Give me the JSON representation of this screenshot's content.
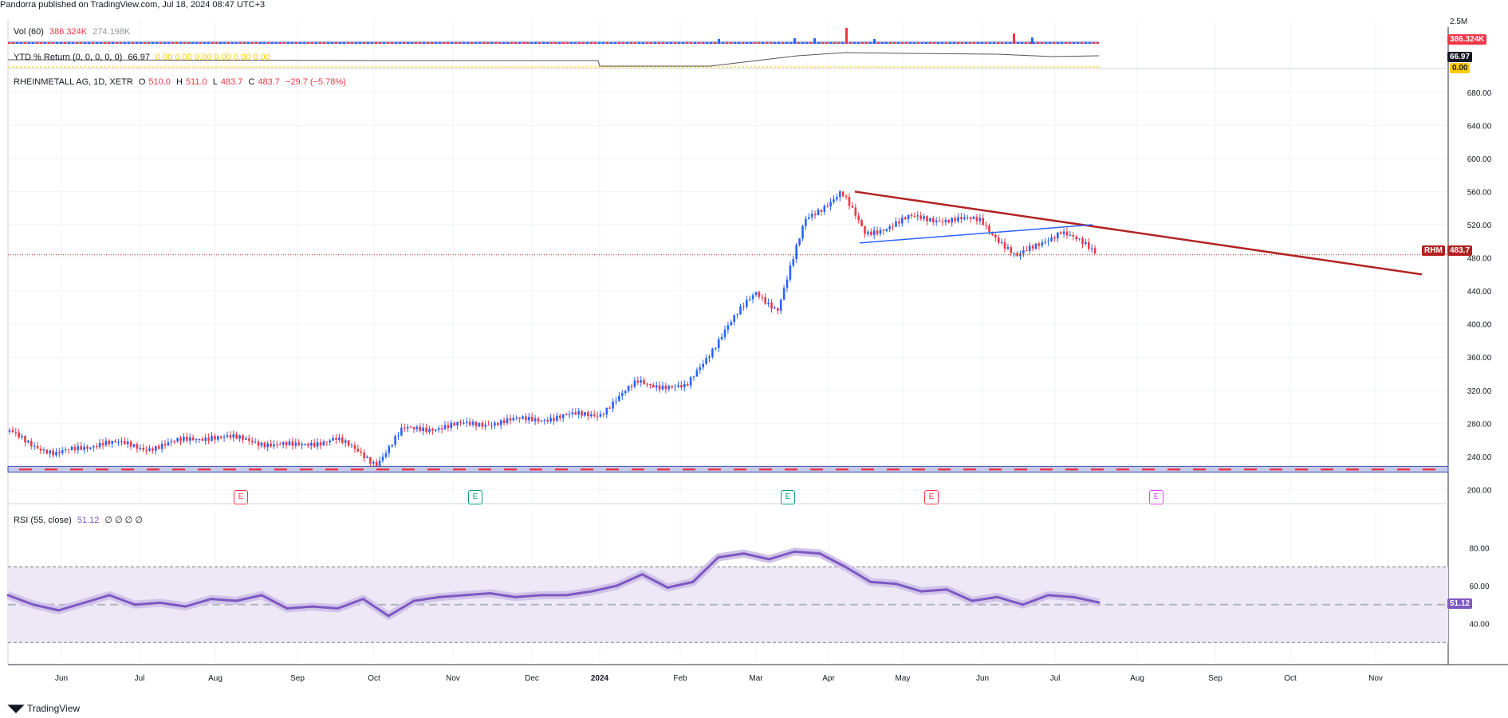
{
  "publisher_line": "Pandorra published on TradingView.com, Jul 18, 2024 08:47 UTC+3",
  "footer_brand": "TradingView",
  "vol_legend": {
    "title": "Vol (60)",
    "v1": "386.324K",
    "v2": "274.198K"
  },
  "ytd_legend": {
    "title": "YTD % Return (0, 0, 0, 0, 0)",
    "value": "66.97",
    "tail": "0.00  0.00  0.00  0.00  0.00  0.00"
  },
  "main_legend": {
    "symbol": "RHEINMETALL AG, 1D, XETR",
    "o_label": "O",
    "o": "510.0",
    "h_label": "H",
    "h": "511.0",
    "l_label": "L",
    "l": "483.7",
    "c_label": "C",
    "c": "483.7",
    "chg": "−29.7 (−5.78%)"
  },
  "rsi_legend": {
    "title": "RSI (55, close)",
    "value": "51.12",
    "tail": "∅ ∅ ∅ ∅"
  },
  "badges": {
    "vol": "386.324K",
    "ytd": "66.97",
    "ytd_zero": "0.00",
    "vol_top": "2.5M",
    "rhm_label": "RHM",
    "rhm_price": "483.7",
    "rsi": "51.12"
  },
  "earnings_marker": "E",
  "colors": {
    "up": "#2962ff",
    "down": "#f23645",
    "trend_down": "#b22222",
    "trend_up": "#2962ff",
    "rsi": "#7e57c2",
    "rsi_band": "#ede7f6",
    "grid": "#f0f3fa"
  },
  "chart_data": {
    "type": "candlestick",
    "symbol": "RHEINMETALL AG, 1D, XETR",
    "x_ticks": [
      "Jun",
      "Jul",
      "Aug",
      "Sep",
      "Oct",
      "Nov",
      "Dec",
      "2024",
      "Feb",
      "Mar",
      "Apr",
      "May",
      "Jun",
      "Jul",
      "Aug",
      "Sep",
      "Oct",
      "Nov"
    ],
    "y_ticks": [
      200,
      240,
      280,
      320,
      360,
      400,
      440,
      480,
      520,
      560,
      600,
      640,
      680
    ],
    "y_tick_labels": [
      "200.00",
      "240.00",
      "280.00",
      "320.00",
      "360.00",
      "400.00",
      "440.00",
      "480.00",
      "520.00",
      "560.00",
      "600.00",
      "640.00",
      "680.00"
    ],
    "ylim": [
      185,
      700
    ],
    "close_path": [
      {
        "month": "2023-05",
        "close": 270
      },
      {
        "month": "2023-05-end",
        "close": 242
      },
      {
        "month": "2023-06",
        "close": 258
      },
      {
        "month": "2023-07",
        "close": 250
      },
      {
        "month": "2023-08",
        "close": 265
      },
      {
        "month": "2023-09",
        "close": 252
      },
      {
        "month": "2023-09-end",
        "close": 262
      },
      {
        "month": "2023-10",
        "close": 232
      },
      {
        "month": "2023-10-mid",
        "close": 272
      },
      {
        "month": "2023-11",
        "close": 277
      },
      {
        "month": "2023-12",
        "close": 285
      },
      {
        "month": "2024-01",
        "close": 292
      },
      {
        "month": "2024-01-mid",
        "close": 330
      },
      {
        "month": "2024-02",
        "close": 322
      },
      {
        "month": "2024-02-mid",
        "close": 395
      },
      {
        "month": "2024-03",
        "close": 438
      },
      {
        "month": "2024-03-mid",
        "close": 418
      },
      {
        "month": "2024-03-end",
        "close": 525
      },
      {
        "month": "2024-04",
        "close": 560
      },
      {
        "month": "2024-04-mid",
        "close": 508
      },
      {
        "month": "2024-05",
        "close": 528
      },
      {
        "month": "2024-06",
        "close": 525
      },
      {
        "month": "2024-06-mid",
        "close": 480
      },
      {
        "month": "2024-07",
        "close": 513
      },
      {
        "month": "2024-07-18",
        "close": 483.7
      }
    ],
    "last_price": 483.7,
    "trendlines": [
      {
        "name": "descending resistance",
        "from": {
          "date": "2024-04-11",
          "price": 560
        },
        "to": {
          "date": "2024-11-30",
          "price": 460
        }
      },
      {
        "name": "ascending support",
        "from": {
          "date": "2024-04-11",
          "price": 498
        },
        "to": {
          "date": "2024-07-12",
          "price": 520
        }
      }
    ],
    "rsi": {
      "ylim": [
        20,
        100
      ],
      "y_ticks": [
        40,
        60,
        80
      ],
      "y_tick_labels": [
        "40.00",
        "60.00",
        "80.00"
      ],
      "bands": [
        30,
        70
      ],
      "midline": 50,
      "values": [
        55,
        50,
        47,
        51,
        55,
        50,
        51,
        49,
        53,
        52,
        55,
        48,
        49,
        48,
        53,
        44,
        52,
        54,
        55,
        56,
        54,
        55,
        55,
        57,
        60,
        66,
        59,
        62,
        75,
        77,
        74,
        78,
        77,
        70,
        62,
        61,
        57,
        58,
        52,
        54,
        50,
        55,
        54,
        51.12
      ],
      "last": 51.12
    },
    "volume": {
      "last": "386.324K",
      "avg": "274.198K",
      "axis_top": "2.5M"
    },
    "ytd_return": {
      "last": 66.97
    }
  }
}
